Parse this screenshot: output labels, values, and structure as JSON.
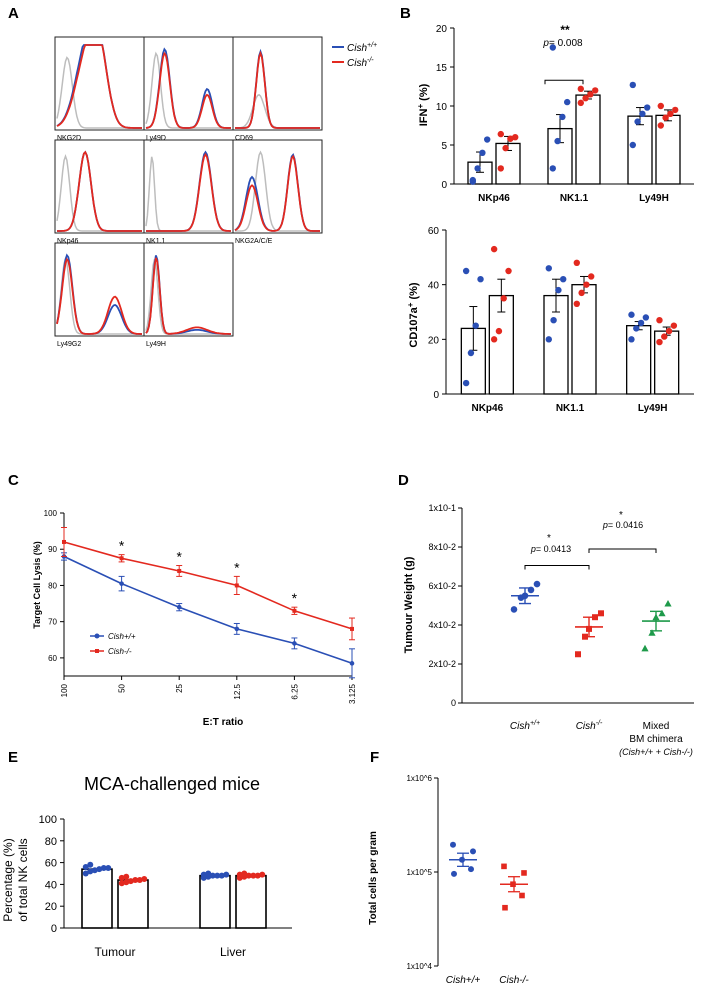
{
  "colors": {
    "wt": "#2a4fb5",
    "ko": "#e3291f",
    "gray": "#bdbdbd",
    "mixed": "#1e9a4a"
  },
  "panel_labels": {
    "A": "A",
    "B": "B",
    "C": "C",
    "D": "D",
    "E": "E",
    "F": "F"
  },
  "panel_a": {
    "legend": {
      "wt_base": "Cish",
      "wt_sup": "+/+",
      "ko_base": "Cish",
      "ko_sup": "-/-"
    },
    "histograms": [
      {
        "label": "NKG2D",
        "shape": "nkg2d"
      },
      {
        "label": "Ly49D",
        "shape": "ly49d"
      },
      {
        "label": "CD69",
        "shape": "cd69"
      },
      {
        "label": "NKp46",
        "shape": "nkp46"
      },
      {
        "label": "NK1.1",
        "shape": "nk11"
      },
      {
        "label": "NKG2A/C/E",
        "shape": "nkg2a"
      },
      {
        "label": "Ly49G2",
        "shape": "ly49g2"
      },
      {
        "label": "Ly49H",
        "shape": "ly49h"
      }
    ]
  },
  "chart_data": [
    {
      "id": "B-top",
      "type": "bar",
      "ylabel_base": "IFN",
      "ylabel_sup": "+",
      "ylabel_tail": " (%)",
      "ylim": [
        0,
        20
      ],
      "yticks": [
        "0",
        "5",
        "10",
        "15",
        "20"
      ],
      "categories": [
        "NKp46",
        "NK1.1",
        "Ly49H"
      ],
      "series": [
        {
          "name": "Cish+/+",
          "values": [
            2.8,
            7.1,
            8.7
          ],
          "sem": [
            1.3,
            1.8,
            1.1
          ],
          "points": [
            [
              0.5,
              2.0,
              4.0,
              5.7,
              0.3
            ],
            [
              2.0,
              5.5,
              8.6,
              10.5,
              17.5
            ],
            [
              5.0,
              8.0,
              9.0,
              9.8,
              12.7
            ]
          ]
        },
        {
          "name": "Cish-/-",
          "values": [
            5.2,
            11.4,
            8.8
          ],
          "sem": [
            0.9,
            0.5,
            0.7
          ],
          "points": [
            [
              2.0,
              4.6,
              5.8,
              6.0,
              6.4
            ],
            [
              10.4,
              11.0,
              11.5,
              12.0,
              12.2
            ],
            [
              7.5,
              8.5,
              9.0,
              9.5,
              10.0
            ]
          ]
        }
      ],
      "annotation": {
        "stars": "**",
        "p_text": "= 0.008"
      }
    },
    {
      "id": "B-bottom",
      "type": "bar",
      "ylabel_base": "CD107a",
      "ylabel_sup": "+",
      "ylabel_tail": " (%)",
      "ylim": [
        0,
        60
      ],
      "yticks": [
        "0",
        "20",
        "40",
        "60"
      ],
      "categories": [
        "NKp46",
        "NK1.1",
        "Ly49H"
      ],
      "series": [
        {
          "name": "Cish+/+",
          "values": [
            24,
            36,
            25
          ],
          "sem": [
            8,
            6,
            1.5
          ],
          "points": [
            [
              4,
              15,
              25,
              42,
              45
            ],
            [
              20,
              27,
              38,
              42,
              46
            ],
            [
              20,
              24,
              26,
              28,
              29
            ]
          ]
        },
        {
          "name": "Cish-/-",
          "values": [
            36,
            40,
            23
          ],
          "sem": [
            6,
            3,
            1.5
          ],
          "points": [
            [
              20,
              23,
              35,
              45,
              53
            ],
            [
              33,
              37,
              40,
              43,
              48
            ],
            [
              19,
              21,
              23,
              25,
              27
            ]
          ]
        }
      ]
    },
    {
      "id": "C",
      "type": "line",
      "ylabel": "Target Cell Lysis (%)",
      "xlabel": "E:T ratio",
      "ylim": [
        55,
        100
      ],
      "yticks": [
        "100",
        "90",
        "80",
        "70",
        "60"
      ],
      "xtick_labels": [
        "100",
        "50",
        "25",
        "12.5",
        "6.25",
        "3.125"
      ],
      "x": [
        100,
        50,
        25,
        12.5,
        6.25,
        3.125
      ],
      "series": [
        {
          "name": "Cish+/+",
          "values": [
            88,
            80.5,
            74,
            68,
            64,
            58.5
          ],
          "err": [
            1,
            2,
            1,
            1.5,
            1.5,
            4
          ]
        },
        {
          "name": "Cish-/-",
          "values": [
            92,
            87.5,
            84,
            80,
            73,
            68
          ],
          "err": [
            4,
            1,
            1.5,
            2.5,
            1,
            3
          ]
        }
      ],
      "star": "*",
      "stars_at": [
        50,
        25,
        12.5,
        6.25
      ],
      "legend": [
        "Cish+/+",
        "Cish-/-"
      ]
    },
    {
      "id": "D",
      "type": "scatter",
      "ylabel": "Tumour Weight (g)",
      "yticks": [
        "1x10-1",
        "8x10-2",
        "6x10-2",
        "4x10-2",
        "2x10-2",
        "0"
      ],
      "ylim": [
        0,
        0.1
      ],
      "groups": [
        {
          "name": "Cish+/+",
          "label_base": "Cish",
          "label_sup": "+/+",
          "mean": 0.055,
          "sem": 0.004,
          "points": [
            0.048,
            0.054,
            0.055,
            0.058,
            0.061
          ]
        },
        {
          "name": "Cish-/-",
          "label_base": "Cish",
          "label_sup": "-/-",
          "mean": 0.039,
          "sem": 0.005,
          "points": [
            0.025,
            0.034,
            0.038,
            0.044,
            0.046
          ]
        },
        {
          "name": "Mixed BM chimera",
          "label_line1": "Mixed",
          "label_line2": "BM chimera",
          "label_line3": "(Cish+/+ + Cish-/-)",
          "mean": 0.042,
          "sem": 0.005,
          "points": [
            0.028,
            0.036,
            0.044,
            0.046,
            0.051
          ]
        }
      ],
      "annotations": [
        {
          "star": "*",
          "p_text": "= 0.0413"
        },
        {
          "star": "*",
          "p_text": "= 0.0416"
        }
      ]
    },
    {
      "id": "E",
      "type": "bar",
      "title": "MCA-challenged mice",
      "ylabel_line1": "Percentage (%)",
      "ylabel_line2": "of total NK cells",
      "ylim": [
        0,
        100
      ],
      "yticks": [
        "0",
        "20",
        "40",
        "60",
        "80",
        "100"
      ],
      "categories": [
        "Tumour",
        "Liver"
      ],
      "series": [
        {
          "name": "Cish+/+",
          "values": [
            54,
            48
          ],
          "points": [
            [
              50,
              52,
              53,
              54,
              55,
              55,
              56,
              58
            ],
            [
              46,
              47,
              48,
              48,
              48,
              49,
              49,
              50
            ]
          ]
        },
        {
          "name": "Cish-/-",
          "values": [
            44,
            48
          ],
          "points": [
            [
              41,
              42,
              43,
              44,
              44,
              45,
              46,
              47
            ],
            [
              46,
              47,
              48,
              48,
              48,
              49,
              49,
              50
            ]
          ]
        }
      ]
    },
    {
      "id": "F",
      "type": "scatter",
      "ylabel": "Total cells per gram",
      "yticks": [
        "1x10^6",
        "1x10^5",
        "1x10^4"
      ],
      "ylim_log": [
        4,
        6
      ],
      "groups": [
        {
          "name": "Cish+/+",
          "mean_log": 5.13,
          "sem_log": 0.07,
          "points_log": [
            4.98,
            5.03,
            5.13,
            5.22,
            5.29
          ]
        },
        {
          "name": "Cish-/-",
          "mean_log": 4.87,
          "sem_log": 0.08,
          "points_log": [
            4.62,
            4.75,
            4.87,
            4.99,
            5.06
          ]
        }
      ]
    }
  ]
}
